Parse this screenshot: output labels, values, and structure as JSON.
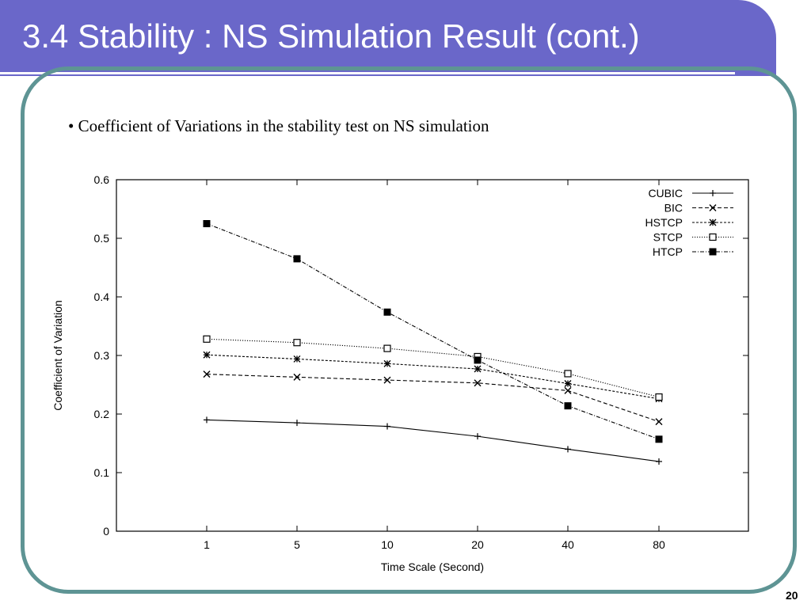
{
  "slide": {
    "title": "3.4 Stability : NS Simulation Result (cont.)",
    "subtitle": "• Coefficient of Variations in the stability test on NS simulation",
    "page_number": "20"
  },
  "colors": {
    "title_bar": "#6a67c9",
    "frame": "#5e9494",
    "line": "#000000"
  },
  "chart_data": {
    "type": "line",
    "title": "",
    "xlabel": "Time Scale (Second)",
    "ylabel": "Coefficient of Variation",
    "categories": [
      "1",
      "5",
      "10",
      "20",
      "40",
      "80"
    ],
    "ylim": [
      0,
      0.6
    ],
    "yticks": [
      "0",
      "0.1",
      "0.2",
      "0.3",
      "0.4",
      "0.5",
      "0.6"
    ],
    "grid": false,
    "legend_position": "top-right",
    "series": [
      {
        "name": "CUBIC",
        "values": [
          0.19,
          0.185,
          0.179,
          0.162,
          0.14,
          0.119
        ],
        "marker": "plus",
        "dash": "solid"
      },
      {
        "name": "BIC",
        "values": [
          0.268,
          0.263,
          0.258,
          0.253,
          0.24,
          0.187
        ],
        "marker": "x",
        "dash": "dashed"
      },
      {
        "name": "HSTCP",
        "values": [
          0.301,
          0.294,
          0.286,
          0.277,
          0.252,
          0.226
        ],
        "marker": "asterisk",
        "dash": "dotted-dash"
      },
      {
        "name": "STCP",
        "values": [
          0.328,
          0.322,
          0.312,
          0.298,
          0.269,
          0.229
        ],
        "marker": "open-square",
        "dash": "dotted"
      },
      {
        "name": "HTCP",
        "values": [
          0.525,
          0.465,
          0.374,
          0.292,
          0.214,
          0.157
        ],
        "marker": "filled-square",
        "dash": "dash-dot"
      }
    ]
  }
}
